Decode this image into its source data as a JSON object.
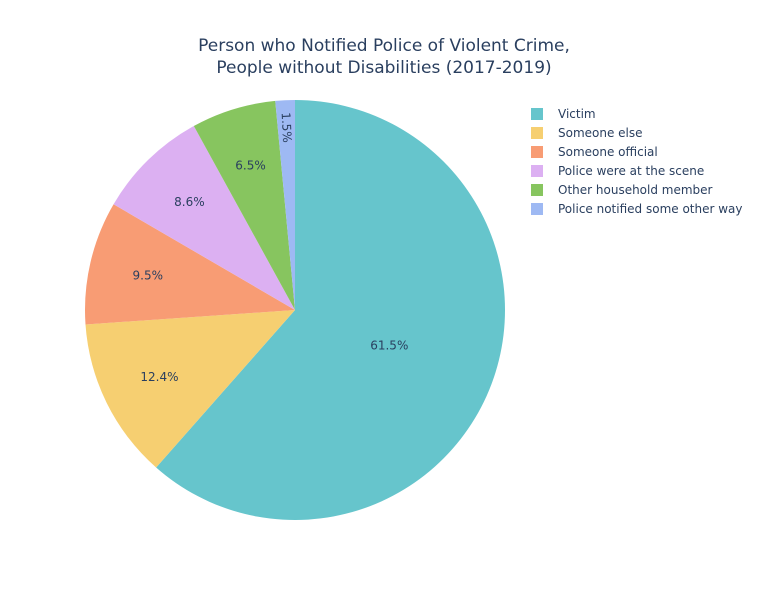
{
  "chart_data": {
    "type": "pie",
    "title": "Person who Notified Police of Violent Crime,",
    "subtitle": "People without Disabilities (2017-2019)",
    "slices": [
      {
        "label": "Victim",
        "value": 61.5,
        "text": "61.5%",
        "color": "#66c5cc"
      },
      {
        "label": "Someone else",
        "value": 12.4,
        "text": "12.4%",
        "color": "#f6cf71"
      },
      {
        "label": "Someone official",
        "value": 9.5,
        "text": "9.5%",
        "color": "#f89c74"
      },
      {
        "label": "Police were at the scene",
        "value": 8.6,
        "text": "8.6%",
        "color": "#dcb0f2"
      },
      {
        "label": "Other household member",
        "value": 6.5,
        "text": "6.5%",
        "color": "#87c55f"
      },
      {
        "label": "Police notified some other way",
        "value": 1.5,
        "text": "1.5%",
        "color": "#9eb9f3"
      }
    ],
    "direction": "clockwise",
    "legend_position": "right"
  }
}
